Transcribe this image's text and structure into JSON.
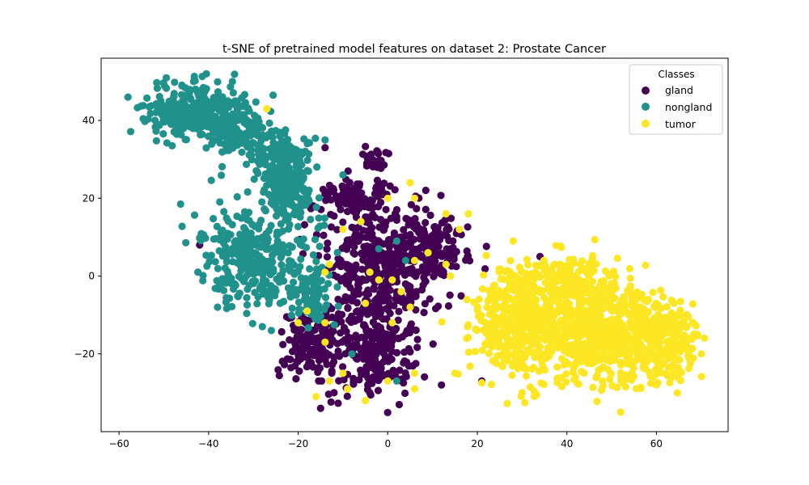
{
  "chart_data": {
    "type": "scatter",
    "title": "t-SNE of pretrained model features on dataset 2: Prostate Cancer",
    "xlabel": "",
    "ylabel": "",
    "xlim": [
      -64,
      76
    ],
    "ylim": [
      -40,
      56
    ],
    "xticks": [
      -60,
      -40,
      -20,
      0,
      20,
      40,
      60
    ],
    "yticks": [
      -20,
      0,
      20,
      40
    ],
    "xtick_labels": [
      "−60",
      "−40",
      "−20",
      "0",
      "20",
      "40",
      "60"
    ],
    "ytick_labels": [
      "−20",
      "0",
      "20",
      "40"
    ],
    "grid": false,
    "legend": {
      "title": "Classes",
      "placement": "upper right"
    },
    "series": [
      {
        "name": "gland",
        "color": "#440154",
        "clusters": [
          {
            "center": [
              -2,
              2
            ],
            "spread": [
              9,
              11
            ],
            "count": 420
          },
          {
            "center": [
              -17,
              -17
            ],
            "spread": [
              4.5,
              5.5
            ],
            "count": 150
          },
          {
            "center": [
              -3,
              -20
            ],
            "spread": [
              6,
              7
            ],
            "count": 220
          },
          {
            "center": [
              -8,
              20
            ],
            "spread": [
              5,
              3
            ],
            "count": 110
          },
          {
            "center": [
              10,
              8
            ],
            "spread": [
              5,
              6
            ],
            "count": 130
          },
          {
            "center": [
              -3,
              30
            ],
            "spread": [
              2,
              1.8
            ],
            "count": 30
          }
        ],
        "points": [
          [
            -42,
            8
          ],
          [
            -34,
            9
          ],
          [
            -33,
            7
          ],
          [
            -14,
            33
          ],
          [
            -12,
            -30
          ],
          [
            -4,
            -30
          ],
          [
            -15,
            -34
          ],
          [
            34,
            5
          ],
          [
            21,
            -27
          ],
          [
            12,
            -28
          ]
        ]
      },
      {
        "name": "nongland",
        "color": "#21918c",
        "clusters": [
          {
            "center": [
              -43,
              42
            ],
            "spread": [
              7,
              5
            ],
            "count": 330
          },
          {
            "center": [
              -33,
              38
            ],
            "spread": [
              5,
              5
            ],
            "count": 130
          },
          {
            "center": [
              -30,
              5
            ],
            "spread": [
              8,
              8
            ],
            "count": 330
          },
          {
            "center": [
              -22,
              22
            ],
            "spread": [
              4,
              6
            ],
            "count": 150
          },
          {
            "center": [
              -24,
              31
            ],
            "spread": [
              5,
              4
            ],
            "count": 130
          },
          {
            "center": [
              -17,
              -5
            ],
            "spread": [
              3.5,
              5
            ],
            "count": 90
          }
        ],
        "points": [
          [
            -14,
            35
          ],
          [
            -10,
            26
          ],
          [
            -38,
            -8
          ],
          [
            -26,
            -14
          ],
          [
            -28,
            -13
          ],
          [
            -8,
            -20
          ],
          [
            2,
            -27
          ],
          [
            2,
            9
          ],
          [
            -2,
            7
          ],
          [
            4,
            4
          ]
        ]
      },
      {
        "name": "tumor",
        "color": "#fde725",
        "clusters": [
          {
            "center": [
              30,
              -12
            ],
            "spread": [
              7,
              9
            ],
            "count": 450
          },
          {
            "center": [
              48,
              -14
            ],
            "spread": [
              9,
              9
            ],
            "count": 600
          },
          {
            "center": [
              62,
              -17
            ],
            "spread": [
              5,
              7
            ],
            "count": 210
          },
          {
            "center": [
              40,
              0
            ],
            "spread": [
              5,
              4
            ],
            "count": 110
          }
        ],
        "points": [
          [
            -27,
            43
          ],
          [
            5,
            24
          ],
          [
            6,
            20
          ],
          [
            -10,
            12
          ],
          [
            -13,
            3
          ],
          [
            -14,
            1
          ],
          [
            -4,
            1
          ],
          [
            -2,
            -1
          ],
          [
            1,
            -1
          ],
          [
            3,
            -4
          ],
          [
            9,
            6
          ],
          [
            13,
            3
          ],
          [
            14,
            0
          ],
          [
            -6,
            14
          ],
          [
            -18,
            -9
          ],
          [
            -20,
            -12
          ],
          [
            -14,
            -17
          ],
          [
            -13,
            -27
          ],
          [
            -10,
            -25
          ],
          [
            -16,
            -31
          ],
          [
            -9,
            -29
          ],
          [
            -5,
            -32
          ],
          [
            0,
            -27
          ],
          [
            6,
            -25
          ],
          [
            6,
            -29
          ],
          [
            5,
            -8
          ],
          [
            6,
            4
          ],
          [
            -5,
            -7
          ],
          [
            18,
            16
          ],
          [
            13,
            16
          ],
          [
            16,
            12
          ],
          [
            28,
            9
          ],
          [
            60,
            -28
          ],
          [
            70,
            -20
          ],
          [
            52,
            -35
          ],
          [
            30,
            -30
          ],
          [
            0,
            20
          ],
          [
            -14,
            -12
          ],
          [
            1,
            -12
          ],
          [
            15,
            -25
          ]
        ]
      }
    ]
  }
}
